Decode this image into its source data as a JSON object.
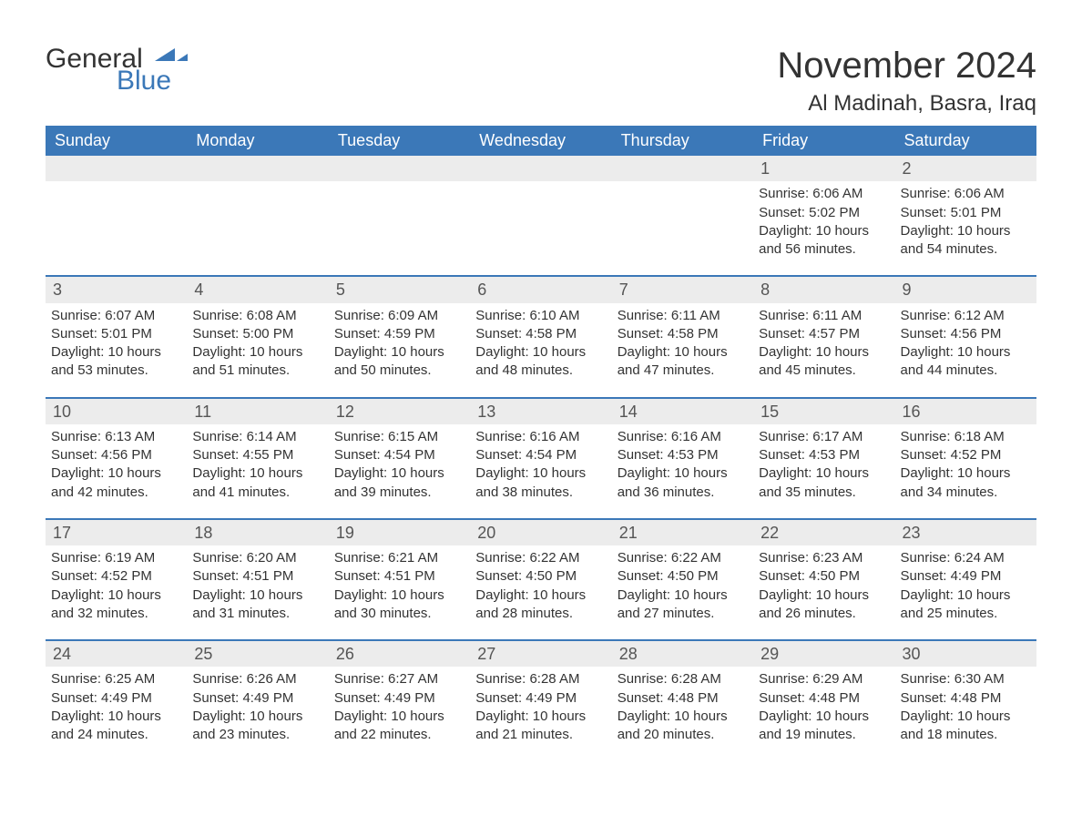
{
  "brand": {
    "word1": "General",
    "word2": "Blue",
    "text_color": "#333333",
    "accent_color": "#3b78b8"
  },
  "title": {
    "month_year": "November 2024",
    "location": "Al Madinah, Basra, Iraq",
    "title_fontsize": 40,
    "location_fontsize": 24,
    "color": "#333333"
  },
  "calendar": {
    "header_bg": "#3b78b8",
    "header_fg": "#ffffff",
    "row_divider_color": "#3b78b8",
    "daynum_bg": "#ececec",
    "body_text_color": "#333333",
    "weekdays": [
      "Sunday",
      "Monday",
      "Tuesday",
      "Wednesday",
      "Thursday",
      "Friday",
      "Saturday"
    ],
    "weeks": [
      [
        null,
        null,
        null,
        null,
        null,
        {
          "day": "1",
          "sunrise": "Sunrise: 6:06 AM",
          "sunset": "Sunset: 5:02 PM",
          "daylight": "Daylight: 10 hours and 56 minutes."
        },
        {
          "day": "2",
          "sunrise": "Sunrise: 6:06 AM",
          "sunset": "Sunset: 5:01 PM",
          "daylight": "Daylight: 10 hours and 54 minutes."
        }
      ],
      [
        {
          "day": "3",
          "sunrise": "Sunrise: 6:07 AM",
          "sunset": "Sunset: 5:01 PM",
          "daylight": "Daylight: 10 hours and 53 minutes."
        },
        {
          "day": "4",
          "sunrise": "Sunrise: 6:08 AM",
          "sunset": "Sunset: 5:00 PM",
          "daylight": "Daylight: 10 hours and 51 minutes."
        },
        {
          "day": "5",
          "sunrise": "Sunrise: 6:09 AM",
          "sunset": "Sunset: 4:59 PM",
          "daylight": "Daylight: 10 hours and 50 minutes."
        },
        {
          "day": "6",
          "sunrise": "Sunrise: 6:10 AM",
          "sunset": "Sunset: 4:58 PM",
          "daylight": "Daylight: 10 hours and 48 minutes."
        },
        {
          "day": "7",
          "sunrise": "Sunrise: 6:11 AM",
          "sunset": "Sunset: 4:58 PM",
          "daylight": "Daylight: 10 hours and 47 minutes."
        },
        {
          "day": "8",
          "sunrise": "Sunrise: 6:11 AM",
          "sunset": "Sunset: 4:57 PM",
          "daylight": "Daylight: 10 hours and 45 minutes."
        },
        {
          "day": "9",
          "sunrise": "Sunrise: 6:12 AM",
          "sunset": "Sunset: 4:56 PM",
          "daylight": "Daylight: 10 hours and 44 minutes."
        }
      ],
      [
        {
          "day": "10",
          "sunrise": "Sunrise: 6:13 AM",
          "sunset": "Sunset: 4:56 PM",
          "daylight": "Daylight: 10 hours and 42 minutes."
        },
        {
          "day": "11",
          "sunrise": "Sunrise: 6:14 AM",
          "sunset": "Sunset: 4:55 PM",
          "daylight": "Daylight: 10 hours and 41 minutes."
        },
        {
          "day": "12",
          "sunrise": "Sunrise: 6:15 AM",
          "sunset": "Sunset: 4:54 PM",
          "daylight": "Daylight: 10 hours and 39 minutes."
        },
        {
          "day": "13",
          "sunrise": "Sunrise: 6:16 AM",
          "sunset": "Sunset: 4:54 PM",
          "daylight": "Daylight: 10 hours and 38 minutes."
        },
        {
          "day": "14",
          "sunrise": "Sunrise: 6:16 AM",
          "sunset": "Sunset: 4:53 PM",
          "daylight": "Daylight: 10 hours and 36 minutes."
        },
        {
          "day": "15",
          "sunrise": "Sunrise: 6:17 AM",
          "sunset": "Sunset: 4:53 PM",
          "daylight": "Daylight: 10 hours and 35 minutes."
        },
        {
          "day": "16",
          "sunrise": "Sunrise: 6:18 AM",
          "sunset": "Sunset: 4:52 PM",
          "daylight": "Daylight: 10 hours and 34 minutes."
        }
      ],
      [
        {
          "day": "17",
          "sunrise": "Sunrise: 6:19 AM",
          "sunset": "Sunset: 4:52 PM",
          "daylight": "Daylight: 10 hours and 32 minutes."
        },
        {
          "day": "18",
          "sunrise": "Sunrise: 6:20 AM",
          "sunset": "Sunset: 4:51 PM",
          "daylight": "Daylight: 10 hours and 31 minutes."
        },
        {
          "day": "19",
          "sunrise": "Sunrise: 6:21 AM",
          "sunset": "Sunset: 4:51 PM",
          "daylight": "Daylight: 10 hours and 30 minutes."
        },
        {
          "day": "20",
          "sunrise": "Sunrise: 6:22 AM",
          "sunset": "Sunset: 4:50 PM",
          "daylight": "Daylight: 10 hours and 28 minutes."
        },
        {
          "day": "21",
          "sunrise": "Sunrise: 6:22 AM",
          "sunset": "Sunset: 4:50 PM",
          "daylight": "Daylight: 10 hours and 27 minutes."
        },
        {
          "day": "22",
          "sunrise": "Sunrise: 6:23 AM",
          "sunset": "Sunset: 4:50 PM",
          "daylight": "Daylight: 10 hours and 26 minutes."
        },
        {
          "day": "23",
          "sunrise": "Sunrise: 6:24 AM",
          "sunset": "Sunset: 4:49 PM",
          "daylight": "Daylight: 10 hours and 25 minutes."
        }
      ],
      [
        {
          "day": "24",
          "sunrise": "Sunrise: 6:25 AM",
          "sunset": "Sunset: 4:49 PM",
          "daylight": "Daylight: 10 hours and 24 minutes."
        },
        {
          "day": "25",
          "sunrise": "Sunrise: 6:26 AM",
          "sunset": "Sunset: 4:49 PM",
          "daylight": "Daylight: 10 hours and 23 minutes."
        },
        {
          "day": "26",
          "sunrise": "Sunrise: 6:27 AM",
          "sunset": "Sunset: 4:49 PM",
          "daylight": "Daylight: 10 hours and 22 minutes."
        },
        {
          "day": "27",
          "sunrise": "Sunrise: 6:28 AM",
          "sunset": "Sunset: 4:49 PM",
          "daylight": "Daylight: 10 hours and 21 minutes."
        },
        {
          "day": "28",
          "sunrise": "Sunrise: 6:28 AM",
          "sunset": "Sunset: 4:48 PM",
          "daylight": "Daylight: 10 hours and 20 minutes."
        },
        {
          "day": "29",
          "sunrise": "Sunrise: 6:29 AM",
          "sunset": "Sunset: 4:48 PM",
          "daylight": "Daylight: 10 hours and 19 minutes."
        },
        {
          "day": "30",
          "sunrise": "Sunrise: 6:30 AM",
          "sunset": "Sunset: 4:48 PM",
          "daylight": "Daylight: 10 hours and 18 minutes."
        }
      ]
    ]
  }
}
